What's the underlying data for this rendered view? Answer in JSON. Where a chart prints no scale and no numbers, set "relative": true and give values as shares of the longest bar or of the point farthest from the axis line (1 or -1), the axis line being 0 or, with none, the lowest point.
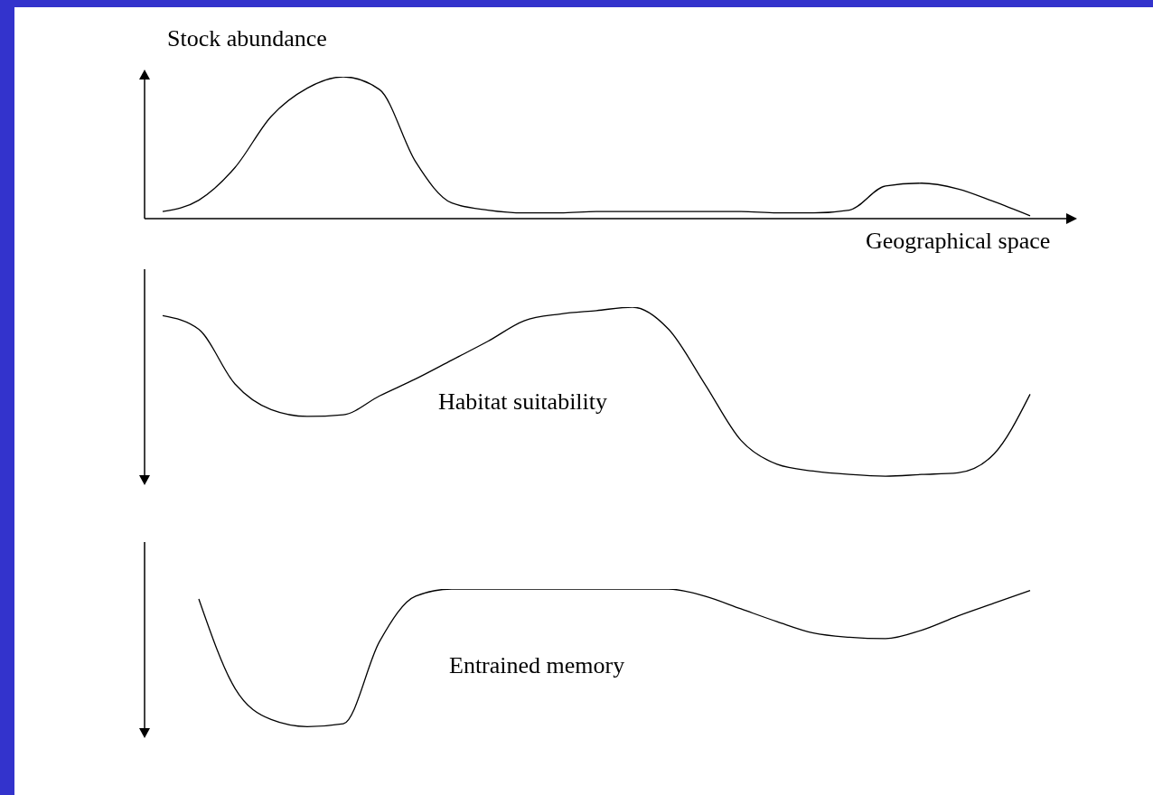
{
  "chart_data": [
    {
      "type": "line",
      "relative": true,
      "ylabel": "Stock abundance",
      "xlabel": "Geographical space",
      "color": "#000000",
      "marker": "none",
      "categories": [
        null,
        null,
        null,
        null,
        null,
        null,
        null,
        null,
        null,
        null,
        null,
        null,
        null,
        null,
        null,
        null,
        null,
        null,
        null,
        null,
        null,
        null,
        null,
        null,
        null,
        null
      ],
      "values": [
        0.05,
        0.13,
        0.36,
        0.72,
        0.92,
        1,
        0.91,
        0.4,
        0.11,
        0.06,
        0.04,
        0.04,
        0.05,
        0.05,
        0.05,
        0.05,
        0.05,
        0.04,
        0.04,
        0.06,
        0.23,
        0.25,
        0.21,
        0.12,
        0.02,
        null
      ]
    },
    {
      "type": "line",
      "relative": true,
      "annotations": [
        "Habitat suitability"
      ],
      "color": "#000000",
      "marker": "none",
      "categories": [
        null,
        null,
        null,
        null,
        null,
        null,
        null,
        null,
        null,
        null,
        null,
        null,
        null,
        null,
        null,
        null,
        null,
        null,
        null,
        null,
        null,
        null,
        null,
        null,
        null,
        null
      ],
      "values": [
        0.95,
        0.87,
        0.55,
        0.4,
        0.36,
        0.37,
        0.48,
        0.58,
        0.69,
        0.8,
        0.92,
        0.96,
        0.98,
        1,
        0.87,
        0.55,
        0.22,
        0.08,
        0.04,
        0.02,
        0.01,
        0.02,
        0.03,
        0.14,
        0.49,
        null
      ]
    },
    {
      "type": "line",
      "relative": true,
      "annotations": [
        "Entrained memory"
      ],
      "color": "#000000",
      "marker": "none",
      "categories": [
        null,
        null,
        null,
        null,
        null,
        null,
        null,
        null,
        null,
        null,
        null,
        null,
        null,
        null,
        null,
        null,
        null,
        null,
        null,
        null,
        null,
        null,
        null,
        null,
        null,
        null
      ],
      "values": [
        null,
        0.93,
        0.3,
        0.08,
        0.03,
        0.05,
        0.63,
        0.95,
        1,
        1,
        1,
        1,
        1,
        1,
        1,
        0.95,
        0.86,
        0.77,
        0.69,
        0.66,
        0.65,
        0.71,
        0.81,
        0.9,
        0.99,
        null
      ]
    }
  ]
}
